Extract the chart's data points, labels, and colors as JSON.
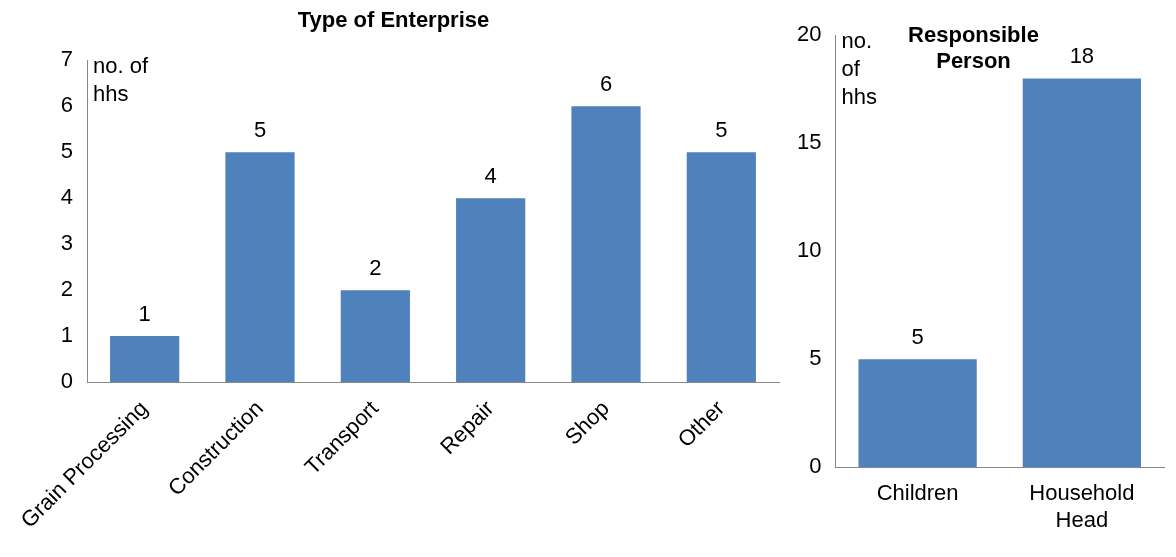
{
  "chart_data": [
    {
      "type": "bar",
      "title": "Type of Enterprise",
      "ylabel": "no. of hhs",
      "categories": [
        "Grain Processing",
        "Construction",
        "Transport",
        "Repair",
        "Shop",
        "Other"
      ],
      "values": [
        1,
        5,
        2,
        4,
        6,
        5
      ],
      "color": "#4f81bd",
      "ylim": [
        0,
        7
      ],
      "yticks": [
        0,
        1,
        2,
        3,
        4,
        5,
        6,
        7
      ],
      "grid": false,
      "legend": false,
      "data_labels": true
    },
    {
      "type": "bar",
      "title": "Responsible Person",
      "ylabel": "no. of hhs",
      "categories": [
        "Children",
        "Household Head"
      ],
      "values": [
        5,
        18
      ],
      "color": "#4f81bd",
      "ylim": [
        0,
        20
      ],
      "yticks": [
        0,
        5,
        10,
        15,
        20
      ],
      "grid": false,
      "legend": false,
      "data_labels": true
    }
  ]
}
